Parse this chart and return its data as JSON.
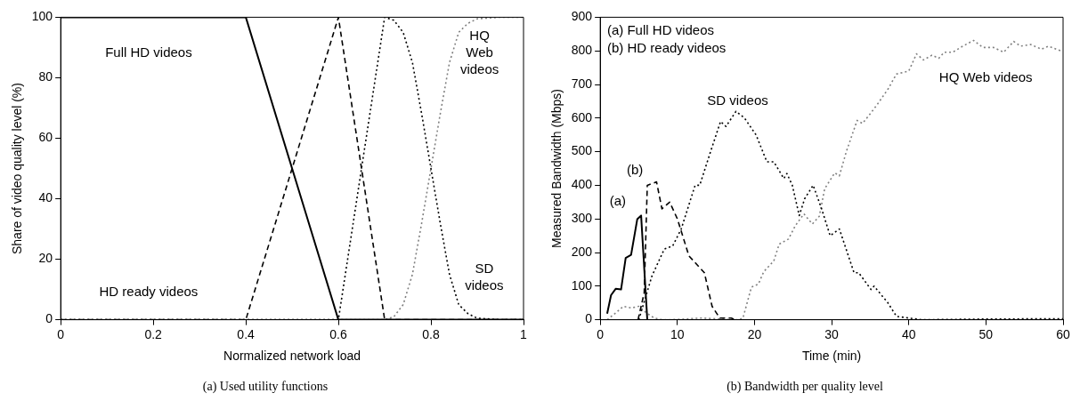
{
  "chart_data": [
    {
      "type": "line",
      "title": "(a) Used utility functions",
      "xlabel": "Normalized network load",
      "ylabel": "Share of video quality level (%)",
      "xlim": [
        0,
        1
      ],
      "ylim": [
        0,
        100
      ],
      "xticks": [
        0,
        0.2,
        0.4,
        0.6,
        0.8,
        1
      ],
      "yticks": [
        0,
        20,
        40,
        60,
        80,
        100
      ],
      "grid": false,
      "legend": false,
      "marker": "none",
      "series": [
        {
          "color": "#000000",
          "line_style": "solid",
          "x": [
            0,
            0.4,
            0.6,
            1
          ],
          "values": [
            100,
            100,
            0,
            0
          ]
        },
        {
          "color": "#000000",
          "line_style": "dashed",
          "x": [
            0,
            0.4,
            0.6,
            0.7,
            1
          ],
          "values": [
            0,
            0,
            100,
            0,
            0
          ]
        },
        {
          "color": "#000000",
          "line_style": "dotted",
          "x": [
            0,
            0.6,
            0.7,
            0.72,
            0.74,
            0.76,
            0.78,
            0.8,
            0.82,
            0.84,
            0.86,
            0.88,
            0.9,
            0.95,
            1
          ],
          "values": [
            0,
            0,
            100,
            99,
            95,
            85,
            68,
            50,
            32,
            15,
            5,
            2,
            0.5,
            0,
            0
          ]
        },
        {
          "color": "#808080",
          "line_style": "dotted",
          "x": [
            0,
            0.7,
            0.72,
            0.74,
            0.76,
            0.78,
            0.8,
            0.82,
            0.84,
            0.86,
            0.88,
            0.9,
            0.95,
            1
          ],
          "values": [
            0,
            0,
            1,
            5,
            15,
            32,
            50,
            68,
            85,
            95,
            98,
            99.5,
            100,
            100
          ]
        }
      ],
      "annotations": [
        "Full HD videos",
        "HD ready videos",
        "HQ\nWeb\nvideos",
        "SD\nvideos"
      ]
    },
    {
      "type": "line",
      "title": "(b) Bandwidth per quality level",
      "xlabel": "Time (min)",
      "ylabel": "Measured Bandwidth (Mbps)",
      "xlim": [
        0,
        60
      ],
      "ylim": [
        0,
        900
      ],
      "xticks": [
        0,
        10,
        20,
        30,
        40,
        50,
        60
      ],
      "yticks": [
        0,
        100,
        200,
        300,
        400,
        500,
        600,
        700,
        800,
        900
      ],
      "grid": false,
      "legend": false,
      "marker": "none",
      "series": [
        {
          "color": "#000000",
          "line_style": "solid",
          "x": [
            0.9,
            1.4,
            2,
            2.7,
            3.3,
            4,
            4.8,
            5.3,
            6.1
          ],
          "values": [
            18,
            73,
            92,
            90,
            184,
            193,
            299,
            310,
            0
          ]
        },
        {
          "color": "#000000",
          "line_style": "dashed",
          "x": [
            4.9,
            5.7,
            6.1,
            7.3,
            8,
            9,
            10,
            11.5,
            12.5,
            13.5,
            14.5,
            15.5,
            17,
            17.5
          ],
          "values": [
            0,
            80,
            400,
            410,
            330,
            350,
            300,
            190,
            165,
            140,
            40,
            5,
            5,
            0
          ]
        },
        {
          "color": "#000000",
          "line_style": "dotted",
          "x": [
            5,
            6.7,
            8.3,
            9.4,
            10.5,
            12.3,
            12.9,
            14.3,
            15.6,
            16.3,
            17.6,
            18.7,
            20.2,
            21.6,
            22.5,
            23.8,
            24.2,
            24.9,
            25.8,
            26.5,
            27.6,
            28.7,
            29.8,
            31,
            32.9,
            33.5,
            35.1,
            35.5,
            37.3,
            38.4,
            40,
            41.7,
            50,
            60
          ],
          "values": [
            0,
            130,
            210,
            220,
            270,
            400,
            400,
            500,
            590,
            575,
            620,
            600,
            550,
            470,
            470,
            420,
            435,
            400,
            310,
            360,
            400,
            330,
            250,
            270,
            140,
            140,
            90,
            100,
            50,
            10,
            5,
            0,
            2,
            3
          ]
        },
        {
          "color": "#808080",
          "line_style": "dotted",
          "x": [
            0.9,
            2,
            3,
            4,
            5,
            6,
            7,
            8,
            9,
            11,
            13,
            15,
            17,
            18,
            18.5,
            19.6,
            20.5,
            21.2,
            22.5,
            23.2,
            24.4,
            25.3,
            26.4,
            27.5,
            28.4,
            29.1,
            30.4,
            31,
            31.9,
            33.3,
            34,
            34.8,
            35.9,
            37.3,
            38.4,
            40,
            41,
            41.9,
            43,
            43.9,
            44.6,
            45.7,
            47,
            48.4,
            49.6,
            51,
            52.3,
            53.6,
            54.5,
            55.8,
            57.2,
            58.1,
            59.9
          ],
          "values": [
            0,
            20,
            40,
            35,
            40,
            20,
            5,
            0,
            0,
            2,
            5,
            3,
            0,
            0,
            5,
            97,
            106,
            143,
            175,
            225,
            240,
            280,
            315,
            285,
            308,
            390,
            437,
            428,
            500,
            593,
            584,
            607,
            640,
            686,
            731,
            740,
            791,
            773,
            787,
            778,
            796,
            796,
            814,
            831,
            810,
            810,
            796,
            828,
            814,
            819,
            805,
            814,
            798
          ]
        }
      ],
      "annotations": [
        "(a) Full HD videos",
        "(b) HD ready videos",
        "(a)",
        "(b)",
        "SD videos",
        "HQ Web videos"
      ]
    }
  ]
}
